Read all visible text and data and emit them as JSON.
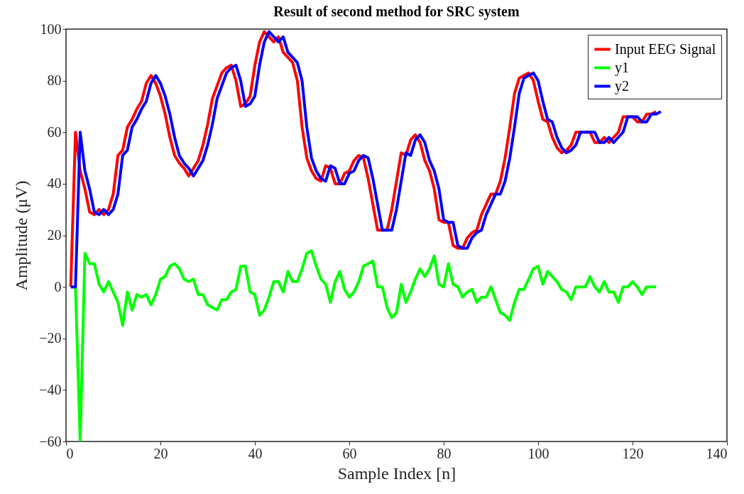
{
  "chart_data": {
    "type": "line",
    "title": "Result of second method for SRC system",
    "xlabel": "Sample Index [n]",
    "ylabel": "Amplitude (μV)",
    "xlim": [
      0,
      140
    ],
    "xticks": [
      0,
      20,
      40,
      60,
      80,
      100,
      120,
      140
    ],
    "ylim": [
      -60,
      100
    ],
    "yticks": [
      -60,
      -40,
      -20,
      0,
      20,
      40,
      60,
      80,
      100
    ],
    "grid": false,
    "legend": "top right",
    "line_style": "solid",
    "x": [
      1,
      2,
      3,
      4,
      5,
      6,
      7,
      8,
      9,
      10,
      11,
      12,
      13,
      14,
      15,
      16,
      17,
      18,
      19,
      20,
      21,
      22,
      23,
      24,
      25,
      26,
      27,
      28,
      29,
      30,
      31,
      32,
      33,
      34,
      35,
      36,
      37,
      38,
      39,
      40,
      41,
      42,
      43,
      44,
      45,
      46,
      47,
      48,
      49,
      50,
      51,
      52,
      53,
      54,
      55,
      56,
      57,
      58,
      59,
      60,
      61,
      62,
      63,
      64,
      65,
      66,
      67,
      68,
      69,
      70,
      71,
      72,
      73,
      74,
      75,
      76,
      77,
      78,
      79,
      80,
      81,
      82,
      83,
      84,
      85,
      86,
      87,
      88,
      89,
      90,
      91,
      92,
      93,
      94,
      95,
      96,
      97,
      98,
      99,
      100,
      101,
      102,
      103,
      104,
      105,
      106,
      107,
      108,
      109,
      110,
      111,
      112,
      113,
      114,
      115,
      116,
      117,
      118,
      119,
      120,
      121,
      122,
      123,
      124,
      125
    ],
    "series": [
      {
        "name": "Input EEG Signal",
        "color": "#ff0000",
        "values": [
          0,
          60,
          45,
          38,
          29,
          28,
          30,
          28,
          30,
          36,
          51,
          53,
          62,
          65,
          69,
          72,
          79,
          82,
          79,
          74,
          67,
          58,
          51,
          48,
          46,
          43,
          46,
          49,
          55,
          63,
          73,
          78,
          83,
          85,
          86,
          80,
          70,
          71,
          74,
          86,
          95,
          99,
          97,
          95,
          97,
          91,
          89,
          87,
          80,
          62,
          50,
          45,
          42,
          41,
          47,
          46,
          40,
          40,
          44,
          45,
          49,
          51,
          50,
          42,
          32,
          22,
          22,
          22,
          30,
          41,
          52,
          51,
          57,
          59,
          56,
          49,
          45,
          38,
          26,
          25,
          25,
          16,
          15,
          15,
          19,
          21,
          22,
          28,
          32,
          36,
          36,
          41,
          50,
          62,
          75,
          81,
          82,
          83,
          80,
          72,
          65,
          64,
          58,
          54,
          52,
          53,
          55,
          60,
          60,
          60,
          60,
          56,
          56,
          58,
          56,
          58,
          60,
          66,
          66,
          66,
          64,
          64,
          67,
          67,
          68
        ]
      },
      {
        "name": "y1",
        "color": "#00ff00",
        "values": [
          0,
          0,
          -60,
          13,
          9,
          9,
          1,
          -2,
          2,
          -2,
          -6,
          -15,
          -2,
          -9,
          -3,
          -4,
          -3,
          -7,
          -3,
          3,
          4,
          8,
          9,
          7,
          3,
          2,
          3,
          -3,
          -3,
          -7,
          -8,
          -9,
          -5,
          -5,
          -2,
          -1,
          8,
          8,
          -2,
          -3,
          -11,
          -9,
          -4,
          2,
          2,
          -2,
          6,
          2,
          2,
          7,
          13,
          14,
          8,
          3,
          1,
          -6,
          2,
          6,
          -1,
          -4,
          -2,
          2,
          8,
          9,
          10,
          0,
          0,
          -8,
          -12,
          -10,
          1,
          -6,
          -2,
          3,
          7,
          4,
          7,
          12,
          1,
          0,
          9,
          1,
          0,
          -4,
          -2,
          -1,
          -6,
          -4,
          -4,
          0,
          -5,
          -10,
          -11,
          -13,
          -6,
          -1,
          -1,
          3,
          7,
          8,
          1,
          6,
          4,
          2,
          -1,
          -2,
          -5,
          0,
          0,
          0,
          4,
          0,
          -2,
          2,
          -2,
          -2,
          -6,
          0,
          0,
          2,
          0,
          -3,
          0,
          0,
          0
        ]
      },
      {
        "name": "y2",
        "color": "#0000ff",
        "x": [
          1,
          2,
          3,
          4,
          5,
          6,
          7,
          8,
          9,
          10,
          11,
          12,
          13,
          14,
          15,
          16,
          17,
          18,
          19,
          20,
          21,
          22,
          23,
          24,
          25,
          26,
          27,
          28,
          29,
          30,
          31,
          32,
          33,
          34,
          35,
          36,
          37,
          38,
          39,
          40,
          41,
          42,
          43,
          44,
          45,
          46,
          47,
          48,
          49,
          50,
          51,
          52,
          53,
          54,
          55,
          56,
          57,
          58,
          59,
          60,
          61,
          62,
          63,
          64,
          65,
          66,
          67,
          68,
          69,
          70,
          71,
          72,
          73,
          74,
          75,
          76,
          77,
          78,
          79,
          80,
          81,
          82,
          83,
          84,
          85,
          86,
          87,
          88,
          89,
          90,
          91,
          92,
          93,
          94,
          95,
          96,
          97,
          98,
          99,
          100,
          101,
          102,
          103,
          104,
          105,
          106,
          107,
          108,
          109,
          110,
          111,
          112,
          113,
          114,
          115,
          116,
          117,
          118,
          119,
          120,
          121,
          122,
          123,
          124,
          125,
          126
        ],
        "values": [
          0,
          0,
          60,
          45,
          38,
          29,
          28,
          30,
          28,
          30,
          36,
          51,
          53,
          62,
          65,
          69,
          72,
          79,
          82,
          79,
          74,
          67,
          58,
          51,
          48,
          46,
          43,
          46,
          49,
          55,
          63,
          73,
          78,
          83,
          85,
          86,
          80,
          70,
          71,
          74,
          86,
          95,
          99,
          97,
          95,
          97,
          91,
          89,
          87,
          80,
          62,
          50,
          45,
          42,
          41,
          47,
          46,
          40,
          40,
          44,
          45,
          49,
          51,
          50,
          42,
          32,
          22,
          22,
          22,
          30,
          41,
          52,
          51,
          57,
          59,
          56,
          49,
          45,
          38,
          26,
          25,
          25,
          16,
          15,
          15,
          19,
          21,
          22,
          28,
          32,
          36,
          36,
          41,
          50,
          62,
          75,
          81,
          82,
          83,
          80,
          72,
          65,
          64,
          58,
          54,
          52,
          53,
          55,
          60,
          60,
          60,
          60,
          56,
          56,
          58,
          56,
          58,
          60,
          66,
          66,
          66,
          64,
          64,
          67,
          67,
          68
        ]
      }
    ]
  }
}
